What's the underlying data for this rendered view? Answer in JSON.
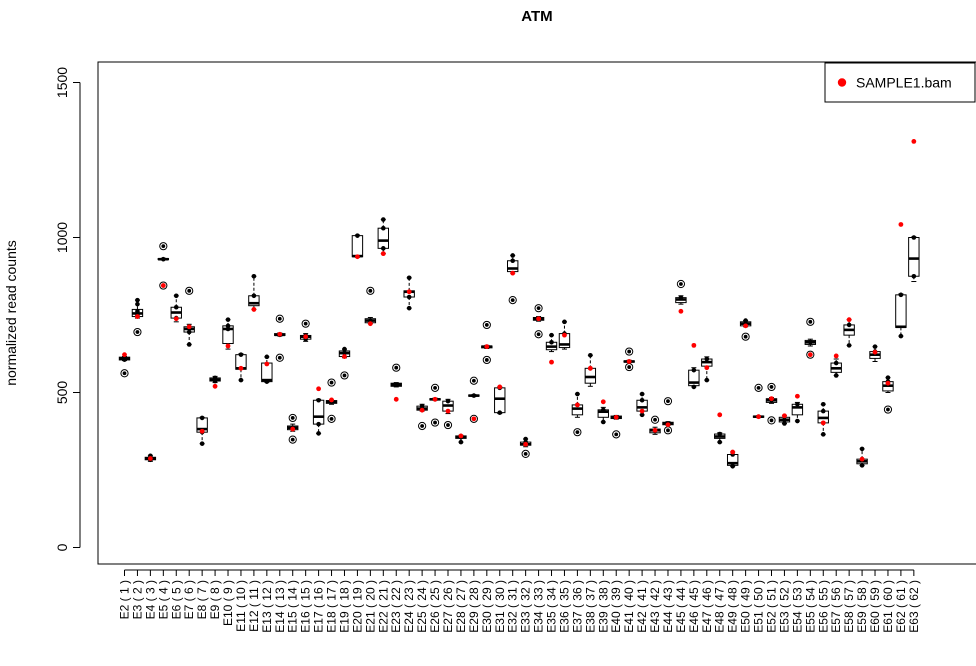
{
  "chart_data": {
    "type": "boxplot",
    "title": "ATM",
    "ylabel": "normalized read counts",
    "xlabel": "",
    "ylim": [
      -50,
      1580
    ],
    "yticks": [
      0,
      500,
      1000,
      1500
    ],
    "legend": {
      "label": "SAMPLE1.bam",
      "color": "#ff0000",
      "placement": "top-right"
    },
    "colors": {
      "sample": "#ff0000",
      "box": "#000000"
    },
    "categories": [
      "E2 ( 1 )",
      "E3 ( 2 )",
      "E4 ( 3 )",
      "E5 ( 4 )",
      "E6 ( 5 )",
      "E7 ( 6 )",
      "E8 ( 7 )",
      "E9 ( 8 )",
      "E10 ( 9 )",
      "E11 ( 10 )",
      "E12 ( 11 )",
      "E13 ( 12 )",
      "E14 ( 13 )",
      "E15 ( 14 )",
      "E16 ( 15 )",
      "E17 ( 16 )",
      "E18 ( 17 )",
      "E19 ( 18 )",
      "E20 ( 19 )",
      "E21 ( 20 )",
      "E22 ( 21 )",
      "E23 ( 22 )",
      "E24 ( 23 )",
      "E25 ( 24 )",
      "E26 ( 25 )",
      "E27 ( 26 )",
      "E28 ( 27 )",
      "E29 ( 28 )",
      "E30 ( 29 )",
      "E31 ( 30 )",
      "E32 ( 31 )",
      "E33 ( 32 )",
      "E34 ( 33 )",
      "E35 ( 34 )",
      "E36 ( 35 )",
      "E37 ( 36 )",
      "E38 ( 37 )",
      "E39 ( 38 )",
      "E40 ( 39 )",
      "E41 ( 40 )",
      "E42 ( 41 )",
      "E43 ( 42 )",
      "E44 ( 43 )",
      "E45 ( 44 )",
      "E46 ( 45 )",
      "E47 ( 46 )",
      "E48 ( 47 )",
      "E49 ( 48 )",
      "E50 ( 49 )",
      "E51 ( 50 )",
      "E52 ( 51 )",
      "E53 ( 52 )",
      "E54 ( 53 )",
      "E55 ( 54 )",
      "E56 ( 55 )",
      "E57 ( 56 )",
      "E58 ( 57 )",
      "E59 ( 58 )",
      "E60 ( 59 )",
      "E61 ( 60 )",
      "E62 ( 61 )",
      "E63 ( 62 )"
    ],
    "boxes": [
      {
        "q1": 605,
        "median": 610,
        "q3": 614,
        "whisker_low": 603,
        "whisker_high": 616,
        "points": [
          610,
          606,
          614
        ],
        "outliers": [
          562
        ],
        "sample": 622
      },
      {
        "q1": 745,
        "median": 755,
        "q3": 768,
        "whisker_low": 740,
        "whisker_high": 798,
        "points": [
          748,
          762,
          785,
          798
        ],
        "outliers": [
          695
        ],
        "sample": 745
      },
      {
        "q1": 283,
        "median": 287,
        "q3": 291,
        "whisker_low": 278,
        "whisker_high": 296,
        "points": [
          283,
          290,
          296
        ],
        "outliers": [],
        "sample": 287
      },
      {
        "q1": 929,
        "median": 930,
        "q3": 932,
        "whisker_low": 928,
        "whisker_high": 933,
        "points": [
          930
        ],
        "outliers": [
          972,
          845
        ],
        "sample": 845
      },
      {
        "q1": 740,
        "median": 758,
        "q3": 775,
        "whisker_low": 728,
        "whisker_high": 812,
        "points": [
          740,
          775,
          812
        ],
        "outliers": [],
        "sample": 738
      },
      {
        "q1": 695,
        "median": 705,
        "q3": 712,
        "whisker_low": 655,
        "whisker_high": 720,
        "points": [
          695,
          712,
          655
        ],
        "outliers": [
          828
        ],
        "sample": 712
      },
      {
        "q1": 372,
        "median": 382,
        "q3": 418,
        "whisker_low": 335,
        "whisker_high": 420,
        "points": [
          418,
          372,
          335
        ],
        "outliers": [],
        "sample": 375
      },
      {
        "q1": 537,
        "median": 541,
        "q3": 547,
        "whisker_low": 532,
        "whisker_high": 552,
        "points": [
          537,
          547
        ],
        "outliers": [],
        "sample": 520
      },
      {
        "q1": 658,
        "median": 705,
        "q3": 715,
        "whisker_low": 640,
        "whisker_high": 735,
        "points": [
          705,
          715,
          735
        ],
        "outliers": [],
        "sample": 650
      },
      {
        "q1": 575,
        "median": 578,
        "q3": 622,
        "whisker_low": 540,
        "whisker_high": 625,
        "points": [
          622,
          540
        ],
        "outliers": [],
        "sample": 578
      },
      {
        "q1": 780,
        "median": 788,
        "q3": 812,
        "whisker_low": 768,
        "whisker_high": 875,
        "points": [
          812,
          875
        ],
        "outliers": [],
        "sample": 768
      },
      {
        "q1": 535,
        "median": 540,
        "q3": 595,
        "whisker_low": 533,
        "whisker_high": 615,
        "points": [
          615,
          535
        ],
        "outliers": [],
        "sample": 592
      },
      {
        "q1": 684,
        "median": 686,
        "q3": 690,
        "whisker_low": 682,
        "whisker_high": 692,
        "points": [
          686
        ],
        "outliers": [
          738,
          612
        ],
        "sample": 688
      },
      {
        "q1": 380,
        "median": 386,
        "q3": 392,
        "whisker_low": 375,
        "whisker_high": 398,
        "points": [
          386
        ],
        "outliers": [
          418,
          348
        ],
        "sample": 382
      },
      {
        "q1": 672,
        "median": 680,
        "q3": 684,
        "whisker_low": 665,
        "whisker_high": 690,
        "points": [
          672,
          684
        ],
        "outliers": [
          722
        ],
        "sample": 680
      },
      {
        "q1": 398,
        "median": 422,
        "q3": 475,
        "whisker_low": 368,
        "whisker_high": 478,
        "points": [
          475,
          398,
          368
        ],
        "outliers": [],
        "sample": 512
      },
      {
        "q1": 465,
        "median": 470,
        "q3": 474,
        "whisker_low": 462,
        "whisker_high": 476,
        "points": [
          470
        ],
        "outliers": [
          532,
          415
        ],
        "sample": 476
      },
      {
        "q1": 616,
        "median": 627,
        "q3": 634,
        "whisker_low": 612,
        "whisker_high": 640,
        "points": [
          627,
          640
        ],
        "outliers": [
          555
        ],
        "sample": 616
      },
      {
        "q1": 938,
        "median": 940,
        "q3": 1006,
        "whisker_low": 936,
        "whisker_high": 1008,
        "points": [
          1006
        ],
        "outliers": [],
        "sample": 938
      },
      {
        "q1": 725,
        "median": 732,
        "q3": 738,
        "whisker_low": 722,
        "whisker_high": 742,
        "points": [
          732
        ],
        "outliers": [
          828
        ],
        "sample": 722
      },
      {
        "q1": 965,
        "median": 990,
        "q3": 1030,
        "whisker_low": 948,
        "whisker_high": 1058,
        "points": [
          1030,
          1058,
          965
        ],
        "outliers": [],
        "sample": 948
      },
      {
        "q1": 520,
        "median": 525,
        "q3": 530,
        "whisker_low": 518,
        "whisker_high": 532,
        "points": [
          525
        ],
        "outliers": [
          580
        ],
        "sample": 478
      },
      {
        "q1": 808,
        "median": 825,
        "q3": 828,
        "whisker_low": 772,
        "whisker_high": 870,
        "points": [
          808,
          870,
          772
        ],
        "outliers": [],
        "sample": 825
      },
      {
        "q1": 443,
        "median": 448,
        "q3": 456,
        "whisker_low": 440,
        "whisker_high": 462,
        "points": [
          456
        ],
        "outliers": [
          392
        ],
        "sample": 443
      },
      {
        "q1": 476,
        "median": 478,
        "q3": 480,
        "whisker_low": 475,
        "whisker_high": 482,
        "points": [
          478
        ],
        "outliers": [
          515,
          403
        ],
        "sample": 478
      },
      {
        "q1": 440,
        "median": 458,
        "q3": 472,
        "whisker_low": 432,
        "whisker_high": 478,
        "points": [
          472
        ],
        "outliers": [
          395
        ],
        "sample": 440
      },
      {
        "q1": 352,
        "median": 356,
        "q3": 360,
        "whisker_low": 340,
        "whisker_high": 362,
        "points": [
          356,
          340
        ],
        "outliers": [],
        "sample": 360
      },
      {
        "q1": 488,
        "median": 490,
        "q3": 492,
        "whisker_low": 487,
        "whisker_high": 493,
        "points": [
          490
        ],
        "outliers": [
          538,
          415
        ],
        "sample": 415
      },
      {
        "q1": 644,
        "median": 648,
        "q3": 650,
        "whisker_low": 642,
        "whisker_high": 652,
        "points": [
          648
        ],
        "outliers": [
          718,
          605
        ],
        "sample": 648
      },
      {
        "q1": 435,
        "median": 480,
        "q3": 515,
        "whisker_low": 432,
        "whisker_high": 518,
        "points": [
          435,
          515
        ],
        "outliers": [],
        "sample": 518
      },
      {
        "q1": 890,
        "median": 900,
        "q3": 925,
        "whisker_low": 885,
        "whisker_high": 942,
        "points": [
          925,
          942
        ],
        "outliers": [
          798
        ],
        "sample": 885
      },
      {
        "q1": 330,
        "median": 333,
        "q3": 340,
        "whisker_low": 325,
        "whisker_high": 350,
        "points": [
          340,
          350
        ],
        "outliers": [
          302
        ],
        "sample": 333
      },
      {
        "q1": 733,
        "median": 738,
        "q3": 742,
        "whisker_low": 730,
        "whisker_high": 745,
        "points": [
          738
        ],
        "outliers": [
          772,
          688
        ],
        "sample": 738
      },
      {
        "q1": 638,
        "median": 648,
        "q3": 662,
        "whisker_low": 632,
        "whisker_high": 685,
        "points": [
          662,
          685
        ],
        "outliers": [],
        "sample": 598
      },
      {
        "q1": 645,
        "median": 655,
        "q3": 690,
        "whisker_low": 640,
        "whisker_high": 728,
        "points": [
          690,
          728
        ],
        "outliers": [],
        "sample": 685
      },
      {
        "q1": 428,
        "median": 448,
        "q3": 460,
        "whisker_low": 420,
        "whisker_high": 495,
        "points": [
          460,
          495
        ],
        "outliers": [
          372
        ],
        "sample": 460
      },
      {
        "q1": 530,
        "median": 550,
        "q3": 578,
        "whisker_low": 520,
        "whisker_high": 620,
        "points": [
          578,
          620
        ],
        "outliers": [],
        "sample": 578
      },
      {
        "q1": 420,
        "median": 438,
        "q3": 444,
        "whisker_low": 405,
        "whisker_high": 452,
        "points": [
          444,
          405
        ],
        "outliers": [],
        "sample": 470
      },
      {
        "q1": 416,
        "median": 420,
        "q3": 424,
        "whisker_low": 414,
        "whisker_high": 426,
        "points": [
          420
        ],
        "outliers": [
          365
        ],
        "sample": 420
      },
      {
        "q1": 598,
        "median": 600,
        "q3": 602,
        "whisker_low": 597,
        "whisker_high": 604,
        "points": [
          600
        ],
        "outliers": [
          632,
          582
        ],
        "sample": 600
      },
      {
        "q1": 440,
        "median": 452,
        "q3": 475,
        "whisker_low": 428,
        "whisker_high": 495,
        "points": [
          475,
          495,
          428
        ],
        "outliers": [],
        "sample": 440
      },
      {
        "q1": 370,
        "median": 378,
        "q3": 382,
        "whisker_low": 365,
        "whisker_high": 388,
        "points": [
          378
        ],
        "outliers": [
          412
        ],
        "sample": 378
      },
      {
        "q1": 396,
        "median": 400,
        "q3": 404,
        "whisker_low": 394,
        "whisker_high": 406,
        "points": [
          400
        ],
        "outliers": [
          472,
          378
        ],
        "sample": 396
      },
      {
        "q1": 790,
        "median": 800,
        "q3": 806,
        "whisker_low": 785,
        "whisker_high": 812,
        "points": [
          806
        ],
        "outliers": [
          850
        ],
        "sample": 762
      },
      {
        "q1": 522,
        "median": 532,
        "q3": 572,
        "whisker_low": 518,
        "whisker_high": 580,
        "points": [
          572,
          518
        ],
        "outliers": [],
        "sample": 652
      },
      {
        "q1": 585,
        "median": 598,
        "q3": 608,
        "whisker_low": 540,
        "whisker_high": 615,
        "points": [
          608,
          540
        ],
        "outliers": [],
        "sample": 580
      },
      {
        "q1": 352,
        "median": 358,
        "q3": 366,
        "whisker_low": 340,
        "whisker_high": 370,
        "points": [
          366,
          340
        ],
        "outliers": [],
        "sample": 428
      },
      {
        "q1": 265,
        "median": 272,
        "q3": 300,
        "whisker_low": 262,
        "whisker_high": 308,
        "points": [
          300,
          262
        ],
        "outliers": [],
        "sample": 308
      },
      {
        "q1": 715,
        "median": 722,
        "q3": 728,
        "whisker_low": 712,
        "whisker_high": 732,
        "points": [
          722,
          732
        ],
        "outliers": [
          680
        ],
        "sample": 715
      },
      {
        "q1": 420,
        "median": 422,
        "q3": 424,
        "whisker_low": 419,
        "whisker_high": 425,
        "points": [
          422
        ],
        "outliers": [
          515
        ],
        "sample": 422
      },
      {
        "q1": 468,
        "median": 475,
        "q3": 480,
        "whisker_low": 465,
        "whisker_high": 484,
        "points": [
          475
        ],
        "outliers": [
          518,
          410
        ],
        "sample": 480
      },
      {
        "q1": 405,
        "median": 412,
        "q3": 420,
        "whisker_low": 400,
        "whisker_high": 425,
        "points": [
          412,
          400
        ],
        "outliers": [],
        "sample": 425
      },
      {
        "q1": 428,
        "median": 452,
        "q3": 462,
        "whisker_low": 408,
        "whisker_high": 468,
        "points": [
          462,
          408
        ],
        "outliers": [],
        "sample": 488
      },
      {
        "q1": 655,
        "median": 662,
        "q3": 668,
        "whisker_low": 650,
        "whisker_high": 672,
        "points": [
          662
        ],
        "outliers": [
          728,
          622
        ],
        "sample": 622
      },
      {
        "q1": 402,
        "median": 418,
        "q3": 440,
        "whisker_low": 365,
        "whisker_high": 462,
        "points": [
          440,
          462,
          365
        ],
        "outliers": [],
        "sample": 402
      },
      {
        "q1": 565,
        "median": 578,
        "q3": 595,
        "whisker_low": 555,
        "whisker_high": 608,
        "points": [
          595,
          555
        ],
        "outliers": [],
        "sample": 618
      },
      {
        "q1": 685,
        "median": 702,
        "q3": 718,
        "whisker_low": 652,
        "whisker_high": 735,
        "points": [
          718,
          652
        ],
        "outliers": [],
        "sample": 735
      },
      {
        "q1": 270,
        "median": 278,
        "q3": 285,
        "whisker_low": 265,
        "whisker_high": 318,
        "points": [
          285,
          318,
          265
        ],
        "outliers": [],
        "sample": 285
      },
      {
        "q1": 610,
        "median": 622,
        "q3": 632,
        "whisker_low": 600,
        "whisker_high": 648,
        "points": [
          632,
          648
        ],
        "outliers": [],
        "sample": 630
      },
      {
        "q1": 505,
        "median": 522,
        "q3": 535,
        "whisker_low": 500,
        "whisker_high": 548,
        "points": [
          535,
          548
        ],
        "outliers": [
          445
        ],
        "sample": 530
      },
      {
        "q1": 710,
        "median": 712,
        "q3": 815,
        "whisker_low": 682,
        "whisker_high": 818,
        "points": [
          815,
          682
        ],
        "outliers": [],
        "sample": 1042
      },
      {
        "q1": 875,
        "median": 932,
        "q3": 1000,
        "whisker_low": 858,
        "whisker_high": 1002,
        "points": [
          1000,
          875
        ],
        "outliers": [],
        "sample": 1310
      }
    ]
  }
}
